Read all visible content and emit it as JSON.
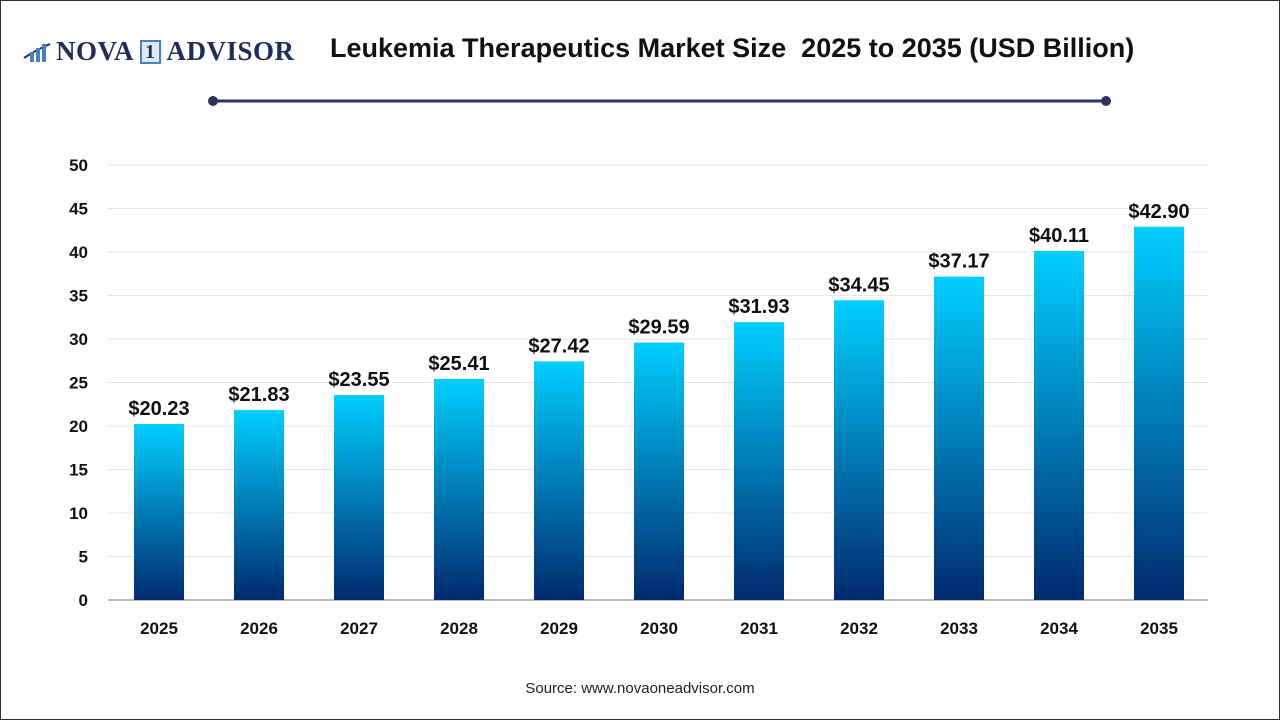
{
  "logo": {
    "text_left": "NOVA",
    "text_mid": "1",
    "text_right": "ADVISOR"
  },
  "title": "Leukemia Therapeutics Market Size  2025 to 2035 (USD Billion)",
  "source": "Source: www.novaoneadvisor.com",
  "colors": {
    "bar_top": "#00cfff",
    "bar_bottom": "#002a6e",
    "title_line": "#2a3560",
    "grid": "#e6e6e6"
  },
  "chart_data": {
    "type": "bar",
    "title": "Leukemia Therapeutics Market Size  2025 to 2035 (USD Billion)",
    "categories": [
      "2025",
      "2026",
      "2027",
      "2028",
      "2029",
      "2030",
      "2031",
      "2032",
      "2033",
      "2034",
      "2035"
    ],
    "values": [
      20.23,
      21.83,
      23.55,
      25.41,
      27.42,
      29.59,
      31.93,
      34.45,
      37.17,
      40.11,
      42.9
    ],
    "data_labels": [
      "$20.23",
      "$21.83",
      "$23.55",
      "$25.41",
      "$27.42",
      "$29.59",
      "$31.93",
      "$34.45",
      "$37.17",
      "$40.11",
      "$42.90"
    ],
    "yticks": [
      "0",
      "5",
      "10",
      "15",
      "20",
      "25",
      "30",
      "35",
      "40",
      "45",
      "50"
    ],
    "ylim": [
      0,
      50
    ],
    "grid": true,
    "legend": "none",
    "xlabel": "",
    "ylabel": ""
  }
}
